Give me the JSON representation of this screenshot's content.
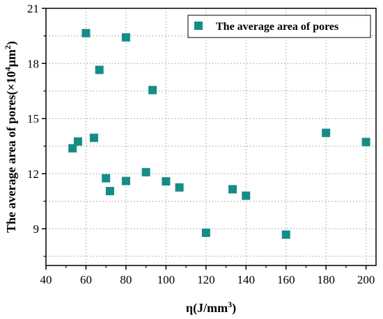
{
  "chart_data": {
    "type": "scatter",
    "xlabel": "η(J/mm",
    "xlabel_sup": "3",
    "xlabel_end": ")",
    "ylabel": "The average area of pores(×10",
    "ylabel_sup1": "4",
    "ylabel_mid": "μm",
    "ylabel_sup2": "2",
    "ylabel_end": ")",
    "xlim": [
      40,
      205
    ],
    "ylim": [
      7.0,
      21.0
    ],
    "xticks": [
      40,
      60,
      80,
      100,
      120,
      140,
      160,
      180,
      200
    ],
    "yticks": [
      9,
      12,
      15,
      18,
      21
    ],
    "xtick_labels": [
      "40",
      "60",
      "80",
      "100",
      "120",
      "140",
      "160",
      "180",
      "200"
    ],
    "ytick_labels": [
      "9",
      "12",
      "15",
      "18",
      "21"
    ],
    "grid": true,
    "legend_position": "top-right",
    "series": [
      {
        "name": "The average area of pores",
        "color": "#168c86",
        "marker": "square",
        "points": [
          {
            "x": 53.3,
            "y": 13.38
          },
          {
            "x": 56.0,
            "y": 13.75
          },
          {
            "x": 60.0,
            "y": 19.65
          },
          {
            "x": 64.0,
            "y": 13.95
          },
          {
            "x": 66.7,
            "y": 17.65
          },
          {
            "x": 70.0,
            "y": 11.75
          },
          {
            "x": 72.0,
            "y": 11.05
          },
          {
            "x": 80.0,
            "y": 19.42
          },
          {
            "x": 80.0,
            "y": 11.6
          },
          {
            "x": 90.0,
            "y": 12.08
          },
          {
            "x": 93.3,
            "y": 16.55
          },
          {
            "x": 100.0,
            "y": 11.58
          },
          {
            "x": 106.7,
            "y": 11.25
          },
          {
            "x": 120.0,
            "y": 8.78
          },
          {
            "x": 133.3,
            "y": 11.15
          },
          {
            "x": 140.0,
            "y": 10.8
          },
          {
            "x": 160.0,
            "y": 8.68
          },
          {
            "x": 180.0,
            "y": 14.22
          },
          {
            "x": 200.0,
            "y": 13.72
          }
        ]
      }
    ]
  }
}
